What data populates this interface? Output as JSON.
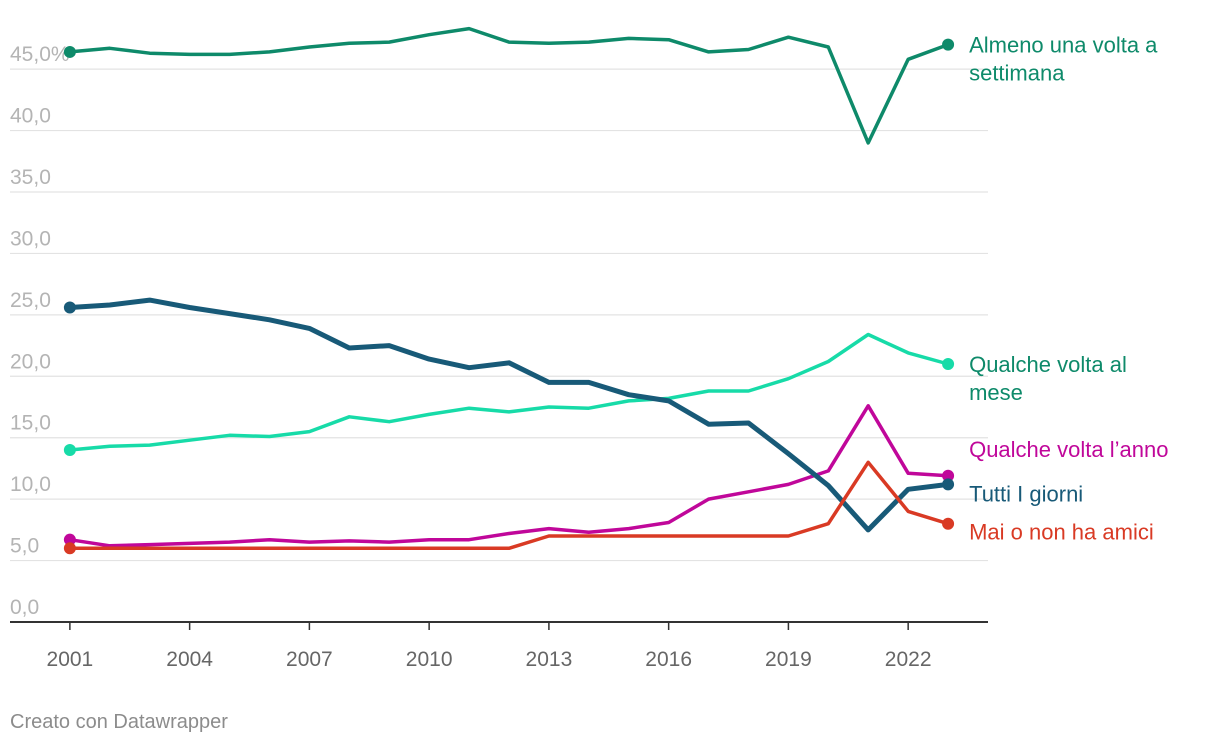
{
  "chart_data": {
    "type": "line",
    "title": "",
    "xlabel": "",
    "ylabel": "",
    "ylim": [
      0,
      49
    ],
    "xlim": [
      1999.5,
      2024
    ],
    "x_ticks": [
      2001,
      2004,
      2007,
      2010,
      2013,
      2016,
      2019,
      2022
    ],
    "x_tick_labels": [
      "2001",
      "2004",
      "2007",
      "2010",
      "2013",
      "2016",
      "2019",
      "2022"
    ],
    "y_ticks": [
      0,
      5,
      10,
      15,
      20,
      25,
      30,
      35,
      40,
      45
    ],
    "y_tick_labels": [
      "0,0",
      "5,0",
      "10,0",
      "15,0",
      "20,0",
      "25,0",
      "30,0",
      "35,0",
      "40,0",
      "45,0%"
    ],
    "grid": true,
    "x": [
      2001,
      2002,
      2003,
      2004,
      2005,
      2006,
      2007,
      2008,
      2009,
      2010,
      2011,
      2012,
      2013,
      2014,
      2015,
      2016,
      2017,
      2018,
      2019,
      2020,
      2021,
      2022,
      2023
    ],
    "series": [
      {
        "name": "Almeno una volta a settimana",
        "label_lines": [
          "Almeno una volta a",
          "settimana"
        ],
        "color": "#0e8a6a",
        "values": [
          46.4,
          46.7,
          46.3,
          46.2,
          46.2,
          46.4,
          46.8,
          47.1,
          47.2,
          47.8,
          48.3,
          47.2,
          47.1,
          47.2,
          47.5,
          47.4,
          46.4,
          46.6,
          47.6,
          46.8,
          39.0,
          45.8,
          47.0
        ],
        "width": 3.5
      },
      {
        "name": "Qualche volta al mese",
        "label_lines": [
          "Qualche volta al",
          "mese"
        ],
        "color": "#17dba8",
        "label_color": "#0e8a6a",
        "values": [
          14.0,
          14.3,
          14.4,
          14.8,
          15.2,
          15.1,
          15.5,
          16.7,
          16.3,
          16.9,
          17.4,
          17.1,
          17.5,
          17.4,
          18.0,
          18.2,
          18.8,
          18.8,
          19.8,
          21.2,
          23.4,
          21.9,
          21.0
        ],
        "width": 3.5
      },
      {
        "name": "Qualche volta l’anno",
        "label_lines": [
          "Qualche volta l’anno"
        ],
        "color": "#c0079a",
        "values": [
          6.7,
          6.2,
          6.3,
          6.4,
          6.5,
          6.7,
          6.5,
          6.6,
          6.5,
          6.7,
          6.7,
          7.2,
          7.6,
          7.3,
          7.6,
          8.1,
          10.0,
          10.6,
          11.2,
          12.3,
          17.6,
          12.1,
          11.9
        ],
        "width": 3.5
      },
      {
        "name": "Tutti I giorni",
        "label_lines": [
          "Tutti I giorni"
        ],
        "color": "#185a78",
        "values": [
          25.6,
          25.8,
          26.2,
          25.6,
          25.1,
          24.6,
          23.9,
          22.3,
          22.5,
          21.4,
          20.7,
          21.1,
          19.5,
          19.5,
          18.5,
          18.0,
          16.1,
          16.2,
          13.7,
          11.1,
          7.5,
          10.8,
          11.2
        ],
        "width": 5
      },
      {
        "name": "Mai o non ha amici",
        "label_lines": [
          "Mai o non ha amici"
        ],
        "color": "#d93a24",
        "values": [
          6.0,
          6.0,
          6.0,
          6.0,
          6.0,
          6.0,
          6.0,
          6.0,
          6.0,
          6.0,
          6.0,
          6.0,
          7.0,
          7.0,
          7.0,
          7.0,
          7.0,
          7.0,
          7.0,
          8.0,
          13.0,
          9.0,
          8.0
        ],
        "width": 3.5
      }
    ]
  },
  "footer": {
    "credit": "Creato con Datawrapper"
  }
}
